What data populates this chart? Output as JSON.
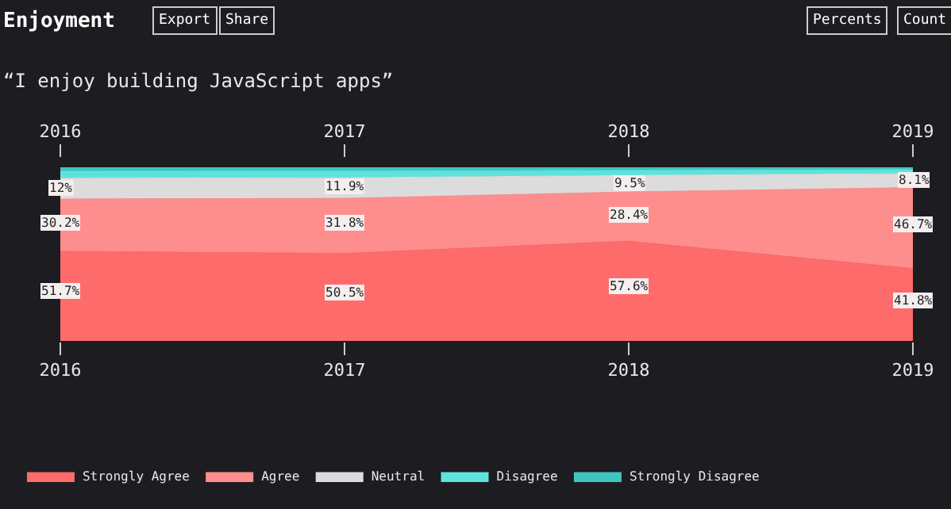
{
  "chart_data": {
    "type": "area",
    "stacked": true,
    "title": "Enjoyment",
    "subtitle": "“I enjoy building JavaScript apps”",
    "annotations": [
      "Export",
      "Share",
      "Percents",
      "Count"
    ],
    "x": [
      2016,
      2017,
      2018,
      2019
    ],
    "xlim": [
      2016,
      2019
    ],
    "xticks": [
      2016,
      2017,
      2018,
      2019
    ],
    "x2lim": [
      2016,
      2019
    ],
    "x2ticks": [
      2016,
      2017,
      2018,
      2019
    ],
    "tick_labels": "x",
    "grid": false,
    "legend": "bottom",
    "series": [
      {
        "name": "Strongly Agree",
        "color": "#fe6b6b",
        "values": [
          51.7,
          50.5,
          57.6,
          41.8
        ],
        "value_labels": [
          "51.7%",
          "50.5%",
          "57.6%",
          "41.8%"
        ]
      },
      {
        "name": "Agree",
        "color": "#fe8e8e",
        "values": [
          30.2,
          31.8,
          28.4,
          46.7
        ],
        "value_labels": [
          "30.2%",
          "31.8%",
          "28.4%",
          "46.7%"
        ]
      },
      {
        "name": "Neutral",
        "color": "#dcdcdc",
        "values": [
          12,
          11.9,
          9.5,
          8.1
        ],
        "value_labels": [
          "12%",
          "11.9%",
          "9.5%",
          "8.1%"
        ]
      },
      {
        "name": "Disagree",
        "color": "#5ee3dc",
        "values": [
          4.0,
          3.8,
          3.0,
          2.2
        ]
      },
      {
        "name": "Strongly Disagree",
        "color": "#3fc4c0",
        "values": [
          2.1,
          2.0,
          1.5,
          1.2
        ]
      }
    ]
  }
}
